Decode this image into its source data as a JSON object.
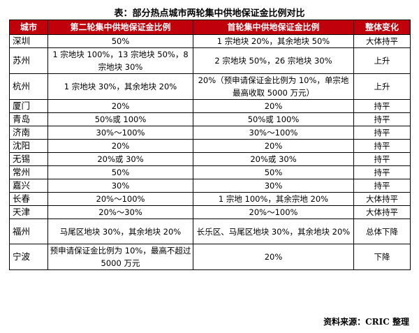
{
  "title": "表：部分热点城市两轮集中供地保证金比例对比",
  "headers": [
    "城市",
    "第二轮集中供地保证金比例",
    "首轮集中供地保证金比例",
    "整体变化"
  ],
  "rows": [
    {
      "city": "深圳",
      "second": "50%",
      "first": "1 宗地块 20%，其余地块 50%",
      "change": "大体持平"
    },
    {
      "city": "苏州",
      "second": "1 宗地块 100%，13 宗地块 50%，8 宗地块 30%",
      "first": "2 宗地块 50%，26 宗地块 30%",
      "change": "上升"
    },
    {
      "city": "杭州",
      "second": "1 宗地块 30%，其余地块 20%",
      "first": "20%（预申请保证金比例为 10%，单宗地最高收取 5000 万元）",
      "change": "上升"
    },
    {
      "city": "厦门",
      "second": "20%",
      "first": "20%",
      "change": "持平"
    },
    {
      "city": "青岛",
      "second": "50%或 100%",
      "first": "50%或 100%",
      "change": "持平"
    },
    {
      "city": "济南",
      "second": "30%～100%",
      "first": "30%～100%",
      "change": "持平"
    },
    {
      "city": "沈阳",
      "second": "20%",
      "first": "20%",
      "change": "持平"
    },
    {
      "city": "无锡",
      "second": "20%或 30%",
      "first": "20%或 30%",
      "change": "持平"
    },
    {
      "city": "常州",
      "second": "50%",
      "first": "50%",
      "change": "持平"
    },
    {
      "city": "嘉兴",
      "second": "30%",
      "first": "30%",
      "change": "持平"
    },
    {
      "city": "长春",
      "second": "20%～100%",
      "first": "1 宗地 100%，其余宗地 20%",
      "change": "大体持平"
    },
    {
      "city": "天津",
      "second": "20%～30%",
      "first": "20%～100%",
      "change": "大体持平"
    },
    {
      "city": "福州",
      "second": "马尾区地块 30%，其余地块 20%",
      "first": "长乐区、马尾区地块 30%，其余地块 20%",
      "change": "总体下降"
    },
    {
      "city": "宁波",
      "second": "预申请保证金比例为 10%，最高不超过 5000 万元",
      "first": "20%",
      "change": "下降"
    }
  ],
  "source": "资料来源：CRIC 整理",
  "colors": {
    "header_bg": "#c0000a",
    "header_text": "#ffffff"
  }
}
